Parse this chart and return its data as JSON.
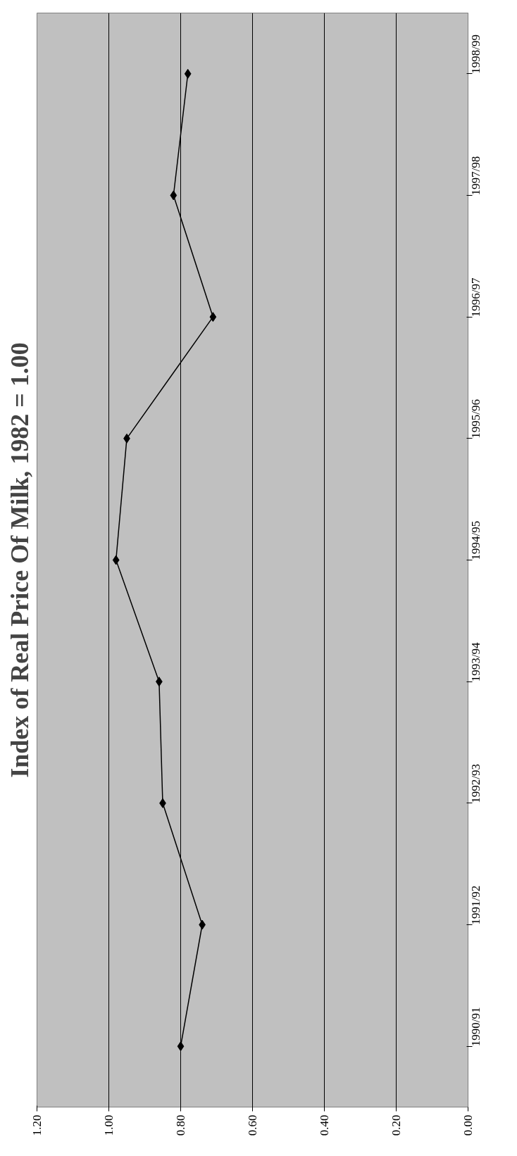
{
  "chart_data": {
    "type": "line",
    "title": "Index of Real Price Of Milk, 1982 = 1.00",
    "orientation": "horizontal",
    "categories": [
      "1998/99",
      "1997/98",
      "1996/97",
      "1995/96",
      "1994/95",
      "1993/94",
      "1992/93",
      "1991/92",
      "1990/91"
    ],
    "series": [
      {
        "color": "#000000",
        "values": [
          0.78,
          0.82,
          0.71,
          0.95,
          0.98,
          0.86,
          0.85,
          0.74,
          0.8
        ]
      }
    ],
    "xlim": [
      1.2,
      0
    ],
    "xticks": [
      {
        "value": 0,
        "label": "0.00"
      },
      {
        "value": 0.2,
        "label": "0.20"
      },
      {
        "value": 0.4,
        "label": "0.40"
      },
      {
        "value": 0.6,
        "label": "0.60"
      },
      {
        "value": 0.8,
        "label": "0.80"
      },
      {
        "value": 1.0,
        "label": "1.00"
      },
      {
        "value": 1.2,
        "label": "1.20"
      }
    ],
    "grid": "x",
    "marker": "diamond",
    "line_style": "solid"
  }
}
